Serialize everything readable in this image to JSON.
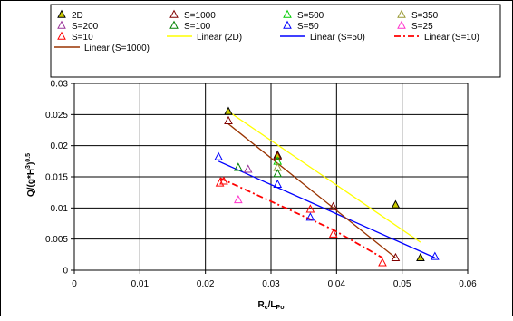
{
  "chart_data": {
    "type": "scatter",
    "title": "",
    "xlabel": "R_c/L_Po",
    "ylabel": "Q/(g*H^3)^0.5",
    "xlabel_parts": {
      "main": "R",
      "sub1": "c",
      "mid": "/L",
      "sub2": "Po"
    },
    "ylabel_parts": {
      "main": "Q/(g*H",
      "sup1": "3",
      "mid": ")",
      "sup2": "^0.5"
    },
    "xlim": [
      0,
      0.06
    ],
    "ylim": [
      0,
      0.03
    ],
    "x_ticks": [
      0,
      0.01,
      0.02,
      0.03,
      0.04,
      0.05,
      0.06
    ],
    "x_tick_labels": [
      "0",
      "0.01",
      "0.02",
      "0.03",
      "0.04",
      "0.05",
      "0.06"
    ],
    "y_ticks": [
      0,
      0.005,
      0.01,
      0.015,
      0.02,
      0.025,
      0.03
    ],
    "y_tick_labels": [
      "0",
      "0.005",
      "0.01",
      "0.015",
      "0.02",
      "0.025",
      "0.03"
    ],
    "grid": true,
    "legend_position": "top",
    "series": [
      {
        "name": "2D",
        "marker": "triangle",
        "stroke": "#000000",
        "fill": "#cccc00",
        "points": [
          [
            0.0235,
            0.0255
          ],
          [
            0.031,
            0.0185
          ],
          [
            0.049,
            0.0105
          ],
          [
            0.0528,
            0.002
          ]
        ]
      },
      {
        "name": "S=1000",
        "marker": "triangle",
        "stroke": "#800000",
        "fill": "none",
        "points": [
          [
            0.0235,
            0.024
          ],
          [
            0.031,
            0.0183
          ],
          [
            0.0395,
            0.0102
          ],
          [
            0.049,
            0.002
          ]
        ]
      },
      {
        "name": "S=500",
        "marker": "triangle",
        "stroke": "#00cc00",
        "fill": "none",
        "points": [
          [
            0.031,
            0.0175
          ]
        ]
      },
      {
        "name": "S=350",
        "marker": "triangle",
        "stroke": "#999933",
        "fill": "none",
        "points": [
          [
            0.031,
            0.0165
          ]
        ]
      },
      {
        "name": "S=200",
        "marker": "triangle",
        "stroke": "#993399",
        "fill": "none",
        "points": [
          [
            0.0265,
            0.0162
          ]
        ]
      },
      {
        "name": "S=100",
        "marker": "triangle",
        "stroke": "#008000",
        "fill": "none",
        "points": [
          [
            0.031,
            0.0155
          ],
          [
            0.025,
            0.0165
          ]
        ]
      },
      {
        "name": "S=50",
        "marker": "triangle",
        "stroke": "#0000ff",
        "fill": "none",
        "points": [
          [
            0.022,
            0.0182
          ],
          [
            0.031,
            0.0138
          ],
          [
            0.036,
            0.0085
          ],
          [
            0.055,
            0.0022
          ]
        ]
      },
      {
        "name": "S=25",
        "marker": "triangle",
        "stroke": "#ff33cc",
        "fill": "none",
        "points": [
          [
            0.025,
            0.0113
          ]
        ]
      },
      {
        "name": "S=10",
        "marker": "triangle",
        "stroke": "#ff0000",
        "fill": "none",
        "points": [
          [
            0.0222,
            0.014
          ],
          [
            0.0228,
            0.0143
          ],
          [
            0.036,
            0.0098
          ],
          [
            0.0395,
            0.0058
          ],
          [
            0.047,
            0.0012
          ]
        ]
      },
      {
        "name": "Linear (2D)",
        "marker": "line",
        "stroke": "#ffff00",
        "dash": "",
        "points": [
          [
            0.0235,
            0.0255
          ],
          [
            0.0528,
            0.0045
          ]
        ]
      },
      {
        "name": "Linear (S=50)",
        "marker": "line",
        "stroke": "#0000ff",
        "dash": "",
        "points": [
          [
            0.022,
            0.0175
          ],
          [
            0.055,
            0.002
          ]
        ]
      },
      {
        "name": "Linear (S=10)",
        "marker": "line",
        "stroke": "#ff0000",
        "dash": "7,3,2,3",
        "points": [
          [
            0.0222,
            0.0148
          ],
          [
            0.0395,
            0.0065
          ],
          [
            0.047,
            0.002
          ]
        ]
      },
      {
        "name": "Linear (S=1000)",
        "marker": "line",
        "stroke": "#993300",
        "dash": "",
        "points": [
          [
            0.0235,
            0.0235
          ],
          [
            0.049,
            0.002
          ]
        ]
      }
    ]
  }
}
